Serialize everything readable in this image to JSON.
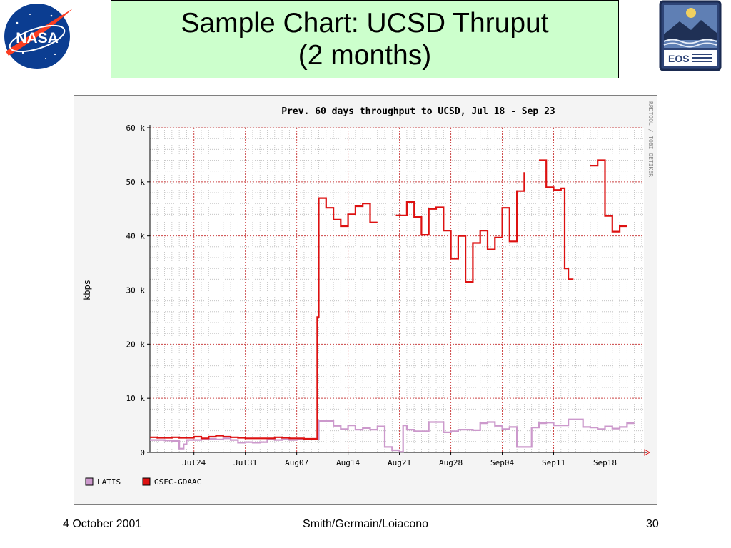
{
  "slide": {
    "title_line1": "Sample Chart: UCSD Thruput",
    "title_line2": "(2 months)",
    "footer_date": "4 October 2001",
    "footer_authors": "Smith/Germain/Loiacono",
    "footer_page": "30"
  },
  "logos": {
    "left": "nasa-logo",
    "right": "eos-logo",
    "eos_text": "EOS"
  },
  "colors": {
    "title_bg": "#ccffcc",
    "latis": "#cc99cc",
    "gsfc": "#dd1111",
    "grid": "#cc4444",
    "plot_bg": "#ffffff",
    "frame_bg": "#f4f4f4"
  },
  "chart_data": {
    "type": "line",
    "title": "Prev. 60 days throughput to UCSD, Jul 18 - Sep 23",
    "xlabel": "",
    "ylabel": "kbps",
    "side_label": "RRDTOOL / TOBI OETIKER",
    "x_range_days": [
      "Jul 18",
      "Sep 23"
    ],
    "ylim": [
      0,
      60000
    ],
    "yticks": [
      {
        "v": 0,
        "label": "0"
      },
      {
        "v": 10000,
        "label": "10 k"
      },
      {
        "v": 20000,
        "label": "20 k"
      },
      {
        "v": 30000,
        "label": "30 k"
      },
      {
        "v": 40000,
        "label": "40 k"
      },
      {
        "v": 50000,
        "label": "50 k"
      },
      {
        "v": 60000,
        "label": "60 k"
      }
    ],
    "xticks": [
      {
        "d": 6,
        "label": "Jul24"
      },
      {
        "d": 13,
        "label": "Jul31"
      },
      {
        "d": 20,
        "label": "Aug07"
      },
      {
        "d": 27,
        "label": "Aug14"
      },
      {
        "d": 34,
        "label": "Aug21"
      },
      {
        "d": 41,
        "label": "Aug28"
      },
      {
        "d": 48,
        "label": "Sep04"
      },
      {
        "d": 55,
        "label": "Sep11"
      },
      {
        "d": 62,
        "label": "Sep18"
      }
    ],
    "grid": true,
    "legend_position": "bottom-left",
    "series": [
      {
        "name": "LATIS",
        "color": "#cc99cc",
        "points": [
          [
            0,
            2300
          ],
          [
            1,
            2300
          ],
          [
            2,
            2200
          ],
          [
            3,
            2100
          ],
          [
            4,
            700
          ],
          [
            4.6,
            1500
          ],
          [
            5,
            2300
          ],
          [
            7,
            2400
          ],
          [
            8,
            2500
          ],
          [
            9,
            2400
          ],
          [
            10,
            2600
          ],
          [
            11,
            2300
          ],
          [
            12,
            1800
          ],
          [
            13,
            1900
          ],
          [
            14,
            1800
          ],
          [
            15,
            1900
          ],
          [
            16,
            2400
          ],
          [
            17,
            2300
          ],
          [
            18,
            2400
          ],
          [
            19,
            2300
          ],
          [
            20,
            2400
          ],
          [
            21,
            2400
          ],
          [
            22,
            2500
          ],
          [
            23,
            5800
          ],
          [
            24,
            5800
          ],
          [
            25,
            4900
          ],
          [
            26,
            4300
          ],
          [
            27,
            5000
          ],
          [
            28,
            4200
          ],
          [
            29,
            4500
          ],
          [
            30,
            4200
          ],
          [
            31,
            4800
          ],
          [
            32,
            1000
          ],
          [
            33,
            400
          ],
          [
            34,
            100
          ],
          [
            34.5,
            5000
          ],
          [
            35,
            4200
          ],
          [
            36,
            3900
          ],
          [
            37,
            3900
          ],
          [
            38,
            5600
          ],
          [
            40,
            3700
          ],
          [
            41,
            3900
          ],
          [
            42,
            4200
          ],
          [
            44,
            4100
          ],
          [
            45,
            5400
          ],
          [
            46,
            5600
          ],
          [
            47,
            4900
          ],
          [
            48,
            4300
          ],
          [
            49,
            4700
          ],
          [
            50,
            1000
          ],
          [
            51,
            1000
          ],
          [
            52,
            4600
          ],
          [
            53,
            5400
          ],
          [
            54,
            5500
          ],
          [
            55,
            5000
          ],
          [
            57,
            6100
          ],
          [
            59,
            4700
          ],
          [
            60,
            4600
          ],
          [
            61,
            4300
          ],
          [
            62,
            4800
          ],
          [
            63,
            4400
          ],
          [
            64,
            4700
          ],
          [
            65,
            5400
          ],
          [
            66,
            5400
          ]
        ]
      },
      {
        "name": "GSFC-GDAAC",
        "color": "#dd1111",
        "points": [
          [
            0,
            2800
          ],
          [
            1,
            2700
          ],
          [
            3,
            2800
          ],
          [
            4,
            2700
          ],
          [
            6,
            2900
          ],
          [
            7,
            2600
          ],
          [
            8,
            2900
          ],
          [
            9,
            3100
          ],
          [
            10,
            2900
          ],
          [
            11,
            2800
          ],
          [
            12,
            2700
          ],
          [
            13,
            2600
          ],
          [
            14,
            2600
          ],
          [
            15,
            2600
          ],
          [
            16,
            2600
          ],
          [
            17,
            2800
          ],
          [
            18,
            2700
          ],
          [
            19,
            2600
          ],
          [
            20,
            2600
          ],
          [
            21,
            2500
          ],
          [
            22.7,
            2500
          ],
          [
            22.8,
            25000
          ],
          [
            23,
            47000
          ],
          [
            24,
            45200
          ],
          [
            25,
            43000
          ],
          [
            26,
            41800
          ],
          [
            27,
            44000
          ],
          [
            28,
            45500
          ],
          [
            29,
            46000
          ],
          [
            30,
            42500
          ],
          [
            31,
            42500
          ],
          null,
          [
            33.5,
            43800
          ],
          [
            34,
            43800
          ],
          [
            35,
            46300
          ],
          [
            36,
            43500
          ],
          [
            37,
            40200
          ],
          [
            38,
            45000
          ],
          [
            39,
            45300
          ],
          [
            40,
            41000
          ],
          [
            41,
            35800
          ],
          [
            42,
            40000
          ],
          [
            43,
            31500
          ],
          [
            44,
            38700
          ],
          [
            45,
            41000
          ],
          [
            46,
            37500
          ],
          [
            47,
            39700
          ],
          [
            48,
            45200
          ],
          [
            49,
            39000
          ],
          [
            50,
            48300
          ],
          [
            51,
            51800
          ],
          null,
          [
            53,
            54000
          ],
          [
            54,
            49000
          ],
          [
            55,
            48500
          ],
          [
            56,
            48800
          ],
          [
            56.5,
            34000
          ],
          [
            57,
            32000
          ],
          [
            57.7,
            32000
          ],
          null,
          [
            60,
            53000
          ],
          [
            61,
            54000
          ],
          [
            62,
            43700
          ],
          [
            63,
            40800
          ],
          [
            64,
            41800
          ],
          [
            65,
            41800
          ]
        ]
      }
    ],
    "legend": [
      "LATIS",
      "GSFC-GDAAC"
    ]
  }
}
